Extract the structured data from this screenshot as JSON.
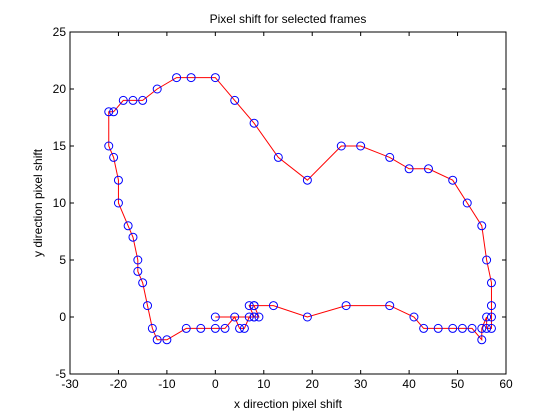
{
  "chart_data": {
    "type": "line",
    "title": "Pixel shift for selected frames",
    "xlabel": "x direction pixel shift",
    "ylabel": "y direction pixel shift",
    "xlim": [
      -30,
      60
    ],
    "ylim": [
      -5,
      25
    ],
    "xticks": [
      -30,
      -20,
      -10,
      0,
      10,
      20,
      30,
      40,
      50,
      60
    ],
    "yticks": [
      -5,
      0,
      5,
      10,
      15,
      20,
      25
    ],
    "grid": false,
    "legend": "none",
    "line_color": "#ff0000",
    "marker": "circle",
    "marker_color": "#0000ff",
    "series": [
      {
        "x": [
          0,
          8,
          7,
          8,
          9,
          8,
          7,
          6,
          5,
          4,
          2,
          0,
          -3,
          -6,
          -10,
          -12,
          -13,
          -14,
          -15,
          -16,
          -16,
          -17,
          -18,
          -20,
          -20,
          -21,
          -22,
          -22,
          -21,
          -19,
          -17,
          -15,
          -12,
          -8,
          -5,
          0,
          4,
          8,
          13,
          19,
          26,
          30,
          36,
          40,
          44,
          49,
          52,
          55,
          56,
          57,
          57,
          57,
          57,
          56,
          56,
          55,
          55,
          53,
          51,
          49,
          46,
          43,
          41,
          36,
          27,
          19,
          12,
          8
        ],
        "y": [
          0,
          0,
          1,
          1,
          0,
          0,
          0,
          -1,
          -1,
          0,
          -1,
          -1,
          -1,
          -1,
          -2,
          -2,
          -1,
          1,
          3,
          4,
          5,
          7,
          8,
          10,
          12,
          14,
          15,
          18,
          18,
          19,
          19,
          19,
          20,
          21,
          21,
          21,
          19,
          17,
          14,
          12,
          15,
          15,
          14,
          13,
          13,
          12,
          10,
          8,
          5,
          3,
          1,
          0,
          -1,
          -1,
          0,
          -1,
          -2,
          -1,
          -1,
          -1,
          -1,
          -1,
          0,
          1,
          1,
          0,
          1,
          1
        ]
      }
    ]
  }
}
